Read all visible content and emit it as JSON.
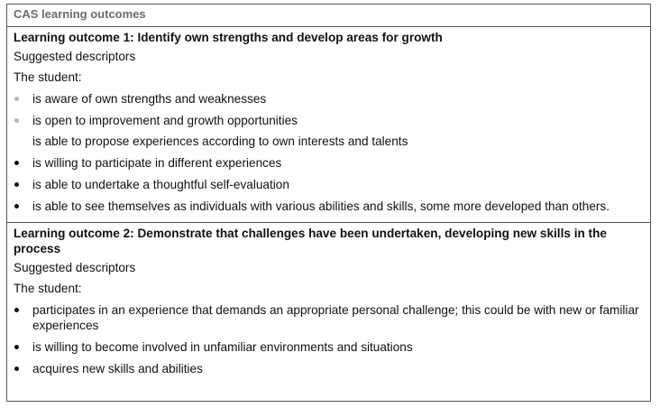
{
  "table": {
    "header": "CAS learning outcomes",
    "outcomes": [
      {
        "title": "Learning outcome 1: Identify own strengths and develop areas for growth",
        "subheading": "Suggested descriptors",
        "intro": "The student:",
        "items": [
          "is aware of own strengths and weaknesses",
          "is open to improvement and growth opportunities",
          "is able to propose experiences according to own interests and talents",
          "is willing to participate in different experiences",
          "is able to undertake a thoughtful self-evaluation",
          "is able to see themselves as individuals with various abilities and skills, some more developed than others."
        ]
      },
      {
        "title": "Learning outcome 2: Demonstrate that challenges have been undertaken, developing new skills in the process",
        "subheading": "Suggested descriptors",
        "intro": "The student:",
        "items": [
          "participates in an experience that demands an appropriate personal challenge; this could be with new or familiar experiences",
          "is willing to become involved in unfamiliar environments and situations",
          "acquires new skills and abilities"
        ]
      }
    ]
  }
}
